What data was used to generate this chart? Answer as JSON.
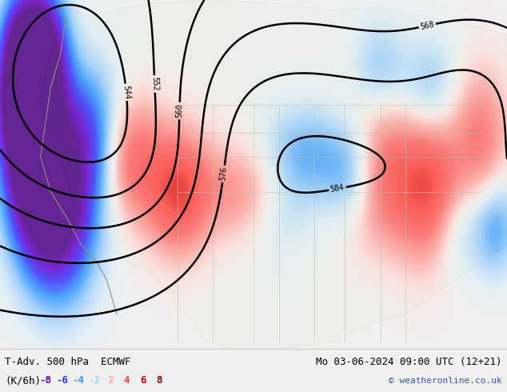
{
  "title_left": "T-Adv. 500 hPa  ECMWF",
  "title_right": "Mo 03-06-2024 09:00 UTC (12+21)",
  "subtitle_left": "(K/6h)",
  "legend_values": [
    "-8",
    "-6",
    "-4",
    "-2",
    "2",
    "4",
    "6",
    "8"
  ],
  "legend_colors": [
    "#6600cc",
    "#3333ff",
    "#3399ff",
    "#99ccff",
    "#ffaaaa",
    "#ff4444",
    "#cc0000",
    "#880000"
  ],
  "copyright": "© weatheronline.co.uk",
  "bg_color": "#e8f4e8",
  "fig_width": 6.34,
  "fig_height": 4.9,
  "dpi": 100,
  "map_bg": "#d0e8d0",
  "ocean_color": "#c8e0f0",
  "land_color": "#e0edd0",
  "contour_color": "#000000",
  "contour_linewidth": 1.5,
  "bottom_bar_color": "#f0f0f0",
  "text_color": "#000000",
  "blue_text": "#3333ff",
  "red_text": "#cc3333"
}
